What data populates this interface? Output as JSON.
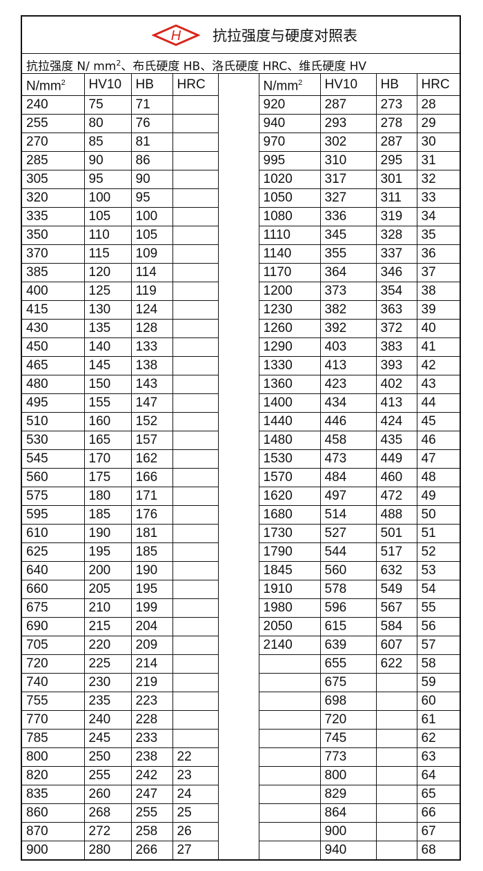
{
  "title": "抗拉强度与硬度对照表",
  "logo": {
    "letter": "H",
    "color": "#d9261c"
  },
  "subtitle_parts": [
    "抗拉强度 N/ mm",
    "2",
    "、布氏硬度 HB、洛氏硬度 HRC、维氏硬度 HV"
  ],
  "headers": [
    {
      "label": "N/mm",
      "sup": "2"
    },
    {
      "label": "HV10"
    },
    {
      "label": "HB"
    },
    {
      "label": "HRC"
    }
  ],
  "left_rows": [
    [
      "240",
      "75",
      "71",
      ""
    ],
    [
      "255",
      "80",
      "76",
      ""
    ],
    [
      "270",
      "85",
      "81",
      ""
    ],
    [
      "285",
      "90",
      "86",
      ""
    ],
    [
      "305",
      "95",
      "90",
      ""
    ],
    [
      "320",
      "100",
      "95",
      ""
    ],
    [
      "335",
      "105",
      "100",
      ""
    ],
    [
      "350",
      "110",
      "105",
      ""
    ],
    [
      "370",
      "115",
      "109",
      ""
    ],
    [
      "385",
      "120",
      "114",
      ""
    ],
    [
      "400",
      "125",
      "119",
      ""
    ],
    [
      "415",
      "130",
      "124",
      ""
    ],
    [
      "430",
      "135",
      "128",
      ""
    ],
    [
      "450",
      "140",
      "133",
      ""
    ],
    [
      "465",
      "145",
      "138",
      ""
    ],
    [
      "480",
      "150",
      "143",
      ""
    ],
    [
      "495",
      "155",
      "147",
      ""
    ],
    [
      "510",
      "160",
      "152",
      ""
    ],
    [
      "530",
      "165",
      "157",
      ""
    ],
    [
      "545",
      "170",
      "162",
      ""
    ],
    [
      "560",
      "175",
      "166",
      ""
    ],
    [
      "575",
      "180",
      "171",
      ""
    ],
    [
      "595",
      "185",
      "176",
      ""
    ],
    [
      "610",
      "190",
      "181",
      ""
    ],
    [
      "625",
      "195",
      "185",
      ""
    ],
    [
      "640",
      "200",
      "190",
      ""
    ],
    [
      "660",
      "205",
      "195",
      ""
    ],
    [
      "675",
      "210",
      "199",
      ""
    ],
    [
      "690",
      "215",
      "204",
      ""
    ],
    [
      "705",
      "220",
      "209",
      ""
    ],
    [
      "720",
      "225",
      "214",
      ""
    ],
    [
      "740",
      "230",
      "219",
      ""
    ],
    [
      "755",
      "235",
      "223",
      ""
    ],
    [
      "770",
      "240",
      "228",
      ""
    ],
    [
      "785",
      "245",
      "233",
      ""
    ],
    [
      "800",
      "250",
      "238",
      "22"
    ],
    [
      "820",
      "255",
      "242",
      "23"
    ],
    [
      "835",
      "260",
      "247",
      "24"
    ],
    [
      "860",
      "268",
      "255",
      "25"
    ],
    [
      "870",
      "272",
      "258",
      "26"
    ],
    [
      "900",
      "280",
      "266",
      "27"
    ]
  ],
  "right_rows": [
    [
      "920",
      "287",
      "273",
      "28"
    ],
    [
      "940",
      "293",
      "278",
      "29"
    ],
    [
      "970",
      "302",
      "287",
      "30"
    ],
    [
      "995",
      "310",
      "295",
      "31"
    ],
    [
      "1020",
      "317",
      "301",
      "32"
    ],
    [
      "1050",
      "327",
      "311",
      "33"
    ],
    [
      "1080",
      "336",
      "319",
      "34"
    ],
    [
      "1110",
      "345",
      "328",
      "35"
    ],
    [
      "1140",
      "355",
      "337",
      "36"
    ],
    [
      "1170",
      "364",
      "346",
      "37"
    ],
    [
      "1200",
      "373",
      "354",
      "38"
    ],
    [
      "1230",
      "382",
      "363",
      "39"
    ],
    [
      "1260",
      "392",
      "372",
      "40"
    ],
    [
      "1290",
      "403",
      "383",
      "41"
    ],
    [
      "1330",
      "413",
      "393",
      "42"
    ],
    [
      "1360",
      "423",
      "402",
      "43"
    ],
    [
      "1400",
      "434",
      "413",
      "44"
    ],
    [
      "1440",
      "446",
      "424",
      "45"
    ],
    [
      "1480",
      "458",
      "435",
      "46"
    ],
    [
      "1530",
      "473",
      "449",
      "47"
    ],
    [
      "1570",
      "484",
      "460",
      "48"
    ],
    [
      "1620",
      "497",
      "472",
      "49"
    ],
    [
      "1680",
      "514",
      "488",
      "50"
    ],
    [
      "1730",
      "527",
      "501",
      "51"
    ],
    [
      "1790",
      "544",
      "517",
      "52"
    ],
    [
      "1845",
      "560",
      "632",
      "53"
    ],
    [
      "1910",
      "578",
      "549",
      "54"
    ],
    [
      "1980",
      "596",
      "567",
      "55"
    ],
    [
      "2050",
      "615",
      "584",
      "56"
    ],
    [
      "2140",
      "639",
      "607",
      "57"
    ],
    [
      "",
      "655",
      "622",
      "58"
    ],
    [
      "",
      "675",
      "",
      "59"
    ],
    [
      "",
      "698",
      "",
      "60"
    ],
    [
      "",
      "720",
      "",
      "61"
    ],
    [
      "",
      "745",
      "",
      "62"
    ],
    [
      "",
      "773",
      "",
      "63"
    ],
    [
      "",
      "800",
      "",
      "64"
    ],
    [
      "",
      "829",
      "",
      "65"
    ],
    [
      "",
      "864",
      "",
      "66"
    ],
    [
      "",
      "900",
      "",
      "67"
    ],
    [
      "",
      "940",
      "",
      "68"
    ]
  ]
}
